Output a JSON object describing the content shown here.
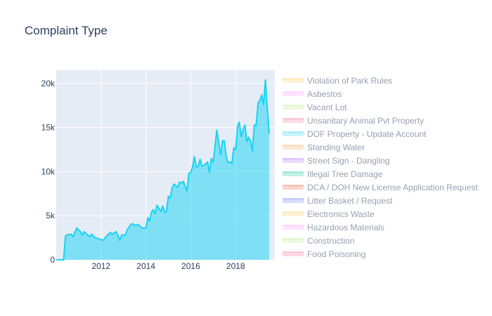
{
  "chart_data": {
    "type": "area",
    "title": "Complaint Type",
    "xlabel": "",
    "ylabel": "",
    "x_range": [
      "2010-01-01",
      "2019-10-01"
    ],
    "ylim": [
      0,
      21500
    ],
    "x_ticks": [
      {
        "label": "2012",
        "value": "2012-01-01"
      },
      {
        "label": "2014",
        "value": "2014-01-01"
      },
      {
        "label": "2016",
        "value": "2016-01-01"
      },
      {
        "label": "2018",
        "value": "2018-01-01"
      }
    ],
    "y_ticks": [
      {
        "label": "0",
        "value": 0
      },
      {
        "label": "5k",
        "value": 5000
      },
      {
        "label": "10k",
        "value": 10000
      },
      {
        "label": "15k",
        "value": 15000
      },
      {
        "label": "20k",
        "value": 20000
      }
    ],
    "grid": true,
    "legend_position": "right",
    "plot_background": "#e5ecf6",
    "series": [
      {
        "name": "DOF Property - Update Account",
        "color": "#19d3f3",
        "points": [
          [
            "2010-01-01",
            0
          ],
          [
            "2010-05-01",
            0
          ],
          [
            "2010-06-01",
            2700
          ],
          [
            "2010-07-01",
            2850
          ],
          [
            "2010-09-01",
            2900
          ],
          [
            "2010-10-01",
            2600
          ],
          [
            "2010-12-01",
            3600
          ],
          [
            "2011-02-01",
            3200
          ],
          [
            "2011-03-01",
            2800
          ],
          [
            "2011-04-01",
            3200
          ],
          [
            "2011-06-01",
            2800
          ],
          [
            "2011-07-01",
            2600
          ],
          [
            "2011-08-01",
            2900
          ],
          [
            "2011-10-01",
            2500
          ],
          [
            "2012-01-01",
            2300
          ],
          [
            "2012-02-01",
            2200
          ],
          [
            "2012-04-01",
            2700
          ],
          [
            "2012-06-01",
            3100
          ],
          [
            "2012-07-01",
            2900
          ],
          [
            "2012-09-01",
            3200
          ],
          [
            "2012-10-01",
            2800
          ],
          [
            "2012-11-01",
            2200
          ],
          [
            "2012-12-01",
            2800
          ],
          [
            "2013-02-01",
            2800
          ],
          [
            "2013-03-01",
            3400
          ],
          [
            "2013-05-01",
            4000
          ],
          [
            "2013-06-01",
            4100
          ],
          [
            "2013-07-01",
            3900
          ],
          [
            "2013-09-01",
            4000
          ],
          [
            "2013-11-01",
            3600
          ],
          [
            "2014-01-01",
            3600
          ],
          [
            "2014-02-01",
            4800
          ],
          [
            "2014-03-01",
            4400
          ],
          [
            "2014-04-01",
            5400
          ],
          [
            "2014-05-01",
            5700
          ],
          [
            "2014-06-01",
            5200
          ],
          [
            "2014-07-01",
            6200
          ],
          [
            "2014-08-01",
            5800
          ],
          [
            "2014-09-01",
            5500
          ],
          [
            "2014-10-01",
            6100
          ],
          [
            "2014-11-01",
            5400
          ],
          [
            "2014-12-01",
            5500
          ],
          [
            "2015-01-01",
            7200
          ],
          [
            "2015-02-01",
            7000
          ],
          [
            "2015-03-01",
            8100
          ],
          [
            "2015-04-01",
            8600
          ],
          [
            "2015-05-01",
            8400
          ],
          [
            "2015-06-01",
            8200
          ],
          [
            "2015-07-01",
            8800
          ],
          [
            "2015-08-01",
            8700
          ],
          [
            "2015-09-01",
            8900
          ],
          [
            "2015-11-01",
            7800
          ],
          [
            "2015-12-01",
            9800
          ],
          [
            "2016-01-01",
            9900
          ],
          [
            "2016-02-01",
            10600
          ],
          [
            "2016-03-01",
            11700
          ],
          [
            "2016-04-01",
            10500
          ],
          [
            "2016-05-01",
            10600
          ],
          [
            "2016-06-01",
            11400
          ],
          [
            "2016-07-01",
            10600
          ],
          [
            "2016-08-01",
            10700
          ],
          [
            "2016-09-01",
            10900
          ],
          [
            "2016-10-01",
            11100
          ],
          [
            "2016-11-01",
            9900
          ],
          [
            "2016-12-01",
            11500
          ],
          [
            "2017-01-01",
            11100
          ],
          [
            "2017-02-01",
            13000
          ],
          [
            "2017-03-01",
            14700
          ],
          [
            "2017-04-01",
            13300
          ],
          [
            "2017-05-01",
            11900
          ],
          [
            "2017-06-01",
            13500
          ],
          [
            "2017-07-01",
            13500
          ],
          [
            "2017-08-01",
            11700
          ],
          [
            "2017-09-01",
            11000
          ],
          [
            "2017-10-01",
            11100
          ],
          [
            "2017-11-01",
            10900
          ],
          [
            "2017-12-01",
            12700
          ],
          [
            "2018-01-01",
            12500
          ],
          [
            "2018-02-01",
            15200
          ],
          [
            "2018-03-01",
            15600
          ],
          [
            "2018-04-01",
            14000
          ],
          [
            "2018-05-01",
            14700
          ],
          [
            "2018-06-01",
            15300
          ],
          [
            "2018-07-01",
            13400
          ],
          [
            "2018-08-01",
            13900
          ],
          [
            "2018-09-01",
            13400
          ],
          [
            "2018-10-01",
            12300
          ],
          [
            "2018-11-01",
            15300
          ],
          [
            "2018-12-01",
            15200
          ],
          [
            "2019-01-01",
            17800
          ],
          [
            "2019-02-01",
            18100
          ],
          [
            "2019-03-01",
            18700
          ],
          [
            "2019-04-01",
            17600
          ],
          [
            "2019-05-01",
            20400
          ],
          [
            "2019-06-01",
            17200
          ],
          [
            "2019-07-01",
            14300
          ]
        ]
      }
    ],
    "legend": [
      {
        "name": "Violation of Park Rules",
        "color": "#fecb52"
      },
      {
        "name": "Asbestos",
        "color": "#ff97ff"
      },
      {
        "name": "Vacant Lot",
        "color": "#b6e880"
      },
      {
        "name": "Unsanitary Animal Pvt Property",
        "color": "#ff6692"
      },
      {
        "name": "DOF Property - Update Account",
        "color": "#19d3f3"
      },
      {
        "name": "Standing Water",
        "color": "#ffa15a"
      },
      {
        "name": "Street Sign - Dangling",
        "color": "#ab63fa"
      },
      {
        "name": "Illegal Tree Damage",
        "color": "#00cc96"
      },
      {
        "name": "DCA / DOH New License Application Request",
        "color": "#ef553b"
      },
      {
        "name": "Litter Basket / Request",
        "color": "#636efa"
      },
      {
        "name": "Electronics Waste",
        "color": "#fecb52"
      },
      {
        "name": "Hazardous Materials",
        "color": "#ff97ff"
      },
      {
        "name": "Construction",
        "color": "#b6e880"
      },
      {
        "name": "Food Poisoning",
        "color": "#ff6692"
      }
    ]
  }
}
